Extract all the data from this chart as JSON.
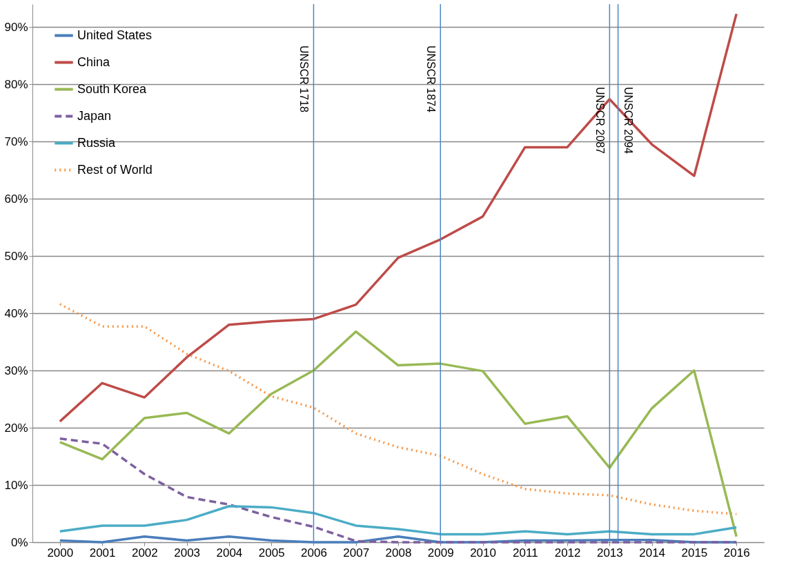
{
  "chart_data": {
    "type": "line",
    "x": [
      2000,
      2001,
      2002,
      2003,
      2004,
      2005,
      2006,
      2007,
      2008,
      2009,
      2010,
      2011,
      2012,
      2013,
      2014,
      2015,
      2016
    ],
    "series": [
      {
        "name": "United States",
        "color": "#4a7ebb",
        "line_style": "solid",
        "values": [
          0.3,
          0,
          1.0,
          0.3,
          1.0,
          0.3,
          0,
          0,
          1.0,
          0,
          0,
          0.3,
          0.3,
          0.4,
          0.4,
          0,
          0
        ]
      },
      {
        "name": "China",
        "color": "#be4b48",
        "line_style": "solid",
        "values": [
          21.1,
          27.8,
          25.3,
          32.3,
          38.0,
          38.6,
          39.0,
          41.5,
          49.7,
          52.9,
          56.9,
          69.0,
          69.0,
          77.4,
          69.5,
          64.0,
          92.3
        ]
      },
      {
        "name": "South Korea",
        "color": "#98b954",
        "line_style": "solid",
        "values": [
          17.5,
          14.5,
          21.7,
          22.6,
          19.0,
          25.9,
          30.0,
          36.8,
          30.9,
          31.2,
          29.9,
          20.7,
          22.0,
          13.0,
          23.4,
          30.0,
          1.0
        ]
      },
      {
        "name": "Japan",
        "color": "#7d60a0",
        "line_style": "dashed",
        "values": [
          18.1,
          17.2,
          11.9,
          7.9,
          6.6,
          4.4,
          2.7,
          0.2,
          0,
          0,
          0,
          0,
          0,
          0,
          0,
          0,
          0
        ]
      },
      {
        "name": "Russia",
        "color": "#4bacc6",
        "line_style": "solid",
        "values": [
          1.9,
          2.9,
          2.9,
          3.9,
          6.3,
          6.1,
          5.1,
          2.9,
          2.3,
          1.4,
          1.4,
          1.9,
          1.4,
          1.9,
          1.4,
          1.4,
          2.6
        ]
      },
      {
        "name": "Rest of World",
        "color": "#f79646",
        "line_style": "dotted",
        "values": [
          41.6,
          37.7,
          37.7,
          32.9,
          29.9,
          25.5,
          23.5,
          19.0,
          16.6,
          15.1,
          11.9,
          9.3,
          8.5,
          8.2,
          6.6,
          5.5,
          4.9
        ]
      }
    ],
    "xlim": [
      1999.35,
      2016.65
    ],
    "xticks": [
      2000,
      2001,
      2002,
      2003,
      2004,
      2005,
      2006,
      2007,
      2008,
      2009,
      2010,
      2011,
      2012,
      2013,
      2014,
      2015,
      2016
    ],
    "ylim": [
      0,
      94
    ],
    "yticks": [
      {
        "value": 0,
        "label": "0%"
      },
      {
        "value": 10,
        "label": "10%"
      },
      {
        "value": 20,
        "label": "20%"
      },
      {
        "value": 30,
        "label": "30%"
      },
      {
        "value": 40,
        "label": "40%"
      },
      {
        "value": 50,
        "label": "50%"
      },
      {
        "value": 60,
        "label": "60%"
      },
      {
        "value": 70,
        "label": "70%"
      },
      {
        "value": 80,
        "label": "80%"
      },
      {
        "value": 90,
        "label": "90%"
      }
    ],
    "ref_lines": [
      {
        "axis": "x",
        "value": 2006,
        "label": "UNSCR 1718",
        "color": "#4a86c8"
      },
      {
        "axis": "x",
        "value": 2009,
        "label": "UNSCR 1874",
        "color": "#4a86c8"
      },
      {
        "axis": "x",
        "value": 2013,
        "label": "UNSCR 2087",
        "color": "#4a86c8"
      },
      {
        "axis": "x",
        "value": 2013.2,
        "label": "UNSCR 2094",
        "color": "#4a86c8"
      }
    ],
    "grid": "y",
    "legend": "top left"
  }
}
